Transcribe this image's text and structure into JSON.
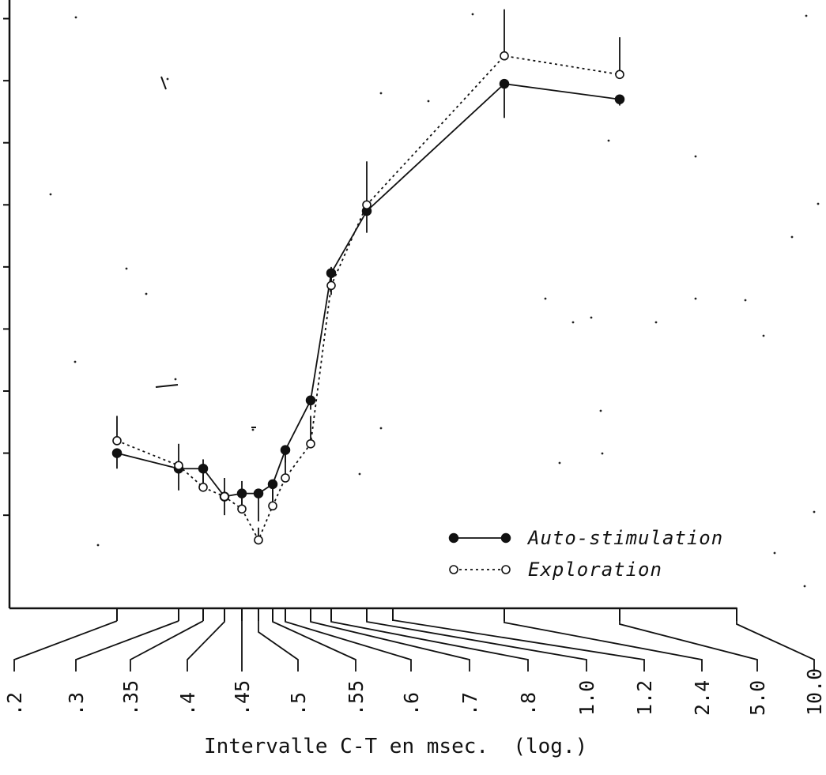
{
  "chart_data": {
    "type": "line",
    "xlabel": "Intervalle C-T en msec.  (log.)",
    "x_scale": "log",
    "tick_labels": [
      ".2",
      ".3",
      ".35",
      ".4",
      ".45",
      ".5",
      ".55",
      ".6",
      ".7",
      ".8",
      "1.0",
      "1.2",
      "2.4",
      "5.0",
      "10.0"
    ],
    "x": [
      0.3,
      0.35,
      0.38,
      0.4,
      0.42,
      0.44,
      0.46,
      0.48,
      0.5,
      0.55,
      0.6,
      1.0,
      5.0
    ],
    "series": [
      {
        "name": "Auto-stimulation",
        "marker": "filled-circle",
        "line": "solid",
        "values": [
          2.0,
          1.75,
          1.75,
          1.3,
          1.35,
          1.35,
          1.5,
          2.05,
          2.85,
          4.9,
          5.9,
          7.95,
          7.7
        ],
        "error": [
          0.25,
          0.35,
          0.3,
          0.3,
          0.3,
          0.45,
          0.3,
          0.2,
          0.15,
          0.35,
          0.35,
          0.55,
          0.1
        ]
      },
      {
        "name": "Exploration",
        "marker": "open-circle",
        "line": "dotted",
        "values": [
          2.2,
          1.8,
          1.45,
          1.3,
          1.1,
          0.6,
          1.15,
          1.6,
          2.15,
          4.7,
          6.0,
          8.4,
          8.1
        ],
        "error": [
          0.4,
          0.35,
          0.45,
          0.3,
          0.45,
          0.2,
          0.3,
          0.45,
          0.45,
          0.3,
          0.7,
          0.75,
          0.6
        ]
      }
    ],
    "ylim": [
      -0.5,
      9.3
    ],
    "y_ticks": [
      1,
      2,
      3,
      4,
      5,
      6,
      7,
      8,
      9
    ],
    "grid": false,
    "legend": "bottom-right",
    "colors": {
      "ink": "#111111",
      "background": "#ffffff"
    }
  }
}
